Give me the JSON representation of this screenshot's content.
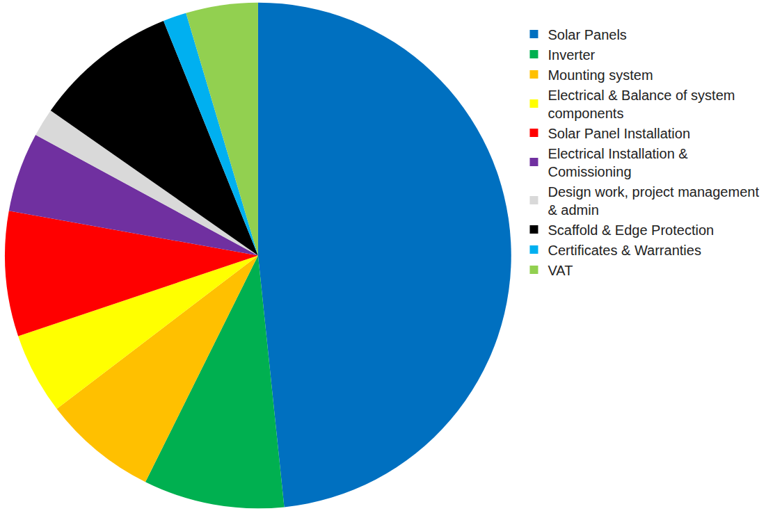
{
  "chart_data": {
    "type": "pie",
    "categories": [
      "Solar Panels",
      "Inverter",
      "Mounting system",
      "Electrical & Balance of system components",
      "Solar Panel Installation",
      "Electrical Installation & Comissioning",
      "Design work, project management & admin",
      "Scaffold & Edge Protection",
      "Certificates & Warranties",
      "VAT"
    ],
    "values": [
      48.4,
      9.0,
      7.3,
      5.2,
      8.0,
      5.1,
      1.8,
      9.2,
      1.5,
      4.6
    ],
    "colors": [
      "#0070C0",
      "#00B050",
      "#FFC000",
      "#FFFF00",
      "#FF0000",
      "#7030A0",
      "#D9D9D9",
      "#000000",
      "#00B0F0",
      "#92D050"
    ],
    "legend": "right"
  }
}
